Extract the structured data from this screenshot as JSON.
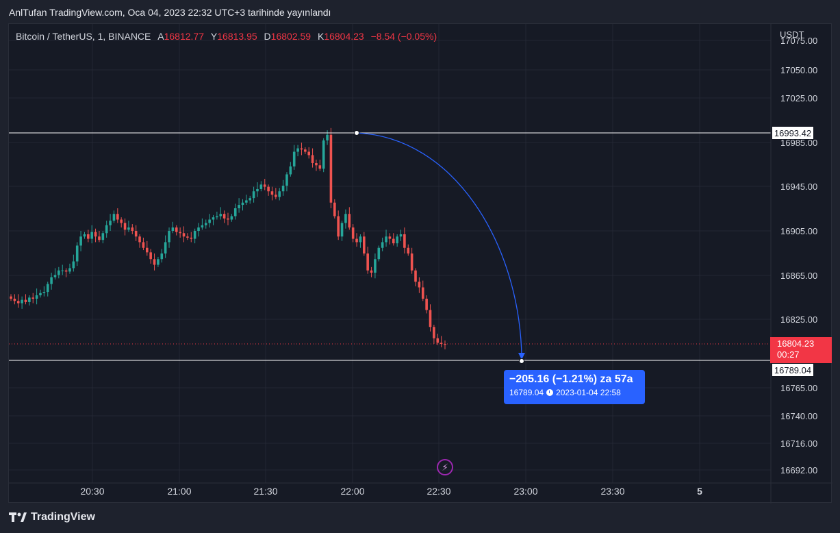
{
  "header": {
    "published_text": "AnlTufan TradingView.com, Oca 04, 2023 22:32 UTC+3 tarihinde yayınlandı"
  },
  "legend": {
    "symbol": "Bitcoin / TetherUS, 1, BINANCE",
    "open_key": "A",
    "open": "16812.77",
    "high_key": "Y",
    "high": "16813.95",
    "low_key": "D",
    "low": "16802.59",
    "close_key": "K",
    "close": "16804.23",
    "change": "−8.54 (−0.05%)"
  },
  "axis": {
    "currency": "USDT",
    "y_ticks": [
      "17075.00",
      "17050.00",
      "17025.00",
      "16985.00",
      "16945.00",
      "16905.00",
      "16865.00",
      "16825.00",
      "16765.00",
      "16740.00",
      "16716.00",
      "16692.00"
    ],
    "x_ticks": [
      "20:30",
      "21:00",
      "21:30",
      "22:00",
      "22:30",
      "23:00",
      "23:30",
      "5"
    ]
  },
  "price_lines": {
    "upper_label": "16993.42",
    "lower_label": "16789.04"
  },
  "current_price": {
    "price": "16804.23",
    "countdown": "00:27"
  },
  "measure": {
    "main": "−205.16 (−1.21%) za 57a",
    "price": "16789.04",
    "datetime": "2023-01-04  22:58"
  },
  "footer": {
    "brand": "TradingView"
  },
  "colors": {
    "up": "#26a69a",
    "down": "#ef5350",
    "measure": "#2962ff",
    "price_tag": "#f23645",
    "background": "#161a25"
  },
  "chart_data": {
    "type": "candlestick",
    "symbol": "Bitcoin / TetherUS",
    "interval": "1",
    "exchange": "BINANCE",
    "x_start": "20:04",
    "x_end": "22:32",
    "close_approx": [
      16845,
      16843,
      16841,
      16844,
      16842,
      16846,
      16845,
      16848,
      16850,
      16851,
      16858,
      16864,
      16866,
      16870,
      16870,
      16869,
      16872,
      16878,
      16892,
      16900,
      16902,
      16898,
      16904,
      16900,
      16897,
      16903,
      16910,
      16914,
      16920,
      16915,
      16912,
      16906,
      16908,
      16905,
      16900,
      16895,
      16890,
      16886,
      16880,
      16875,
      16880,
      16885,
      16895,
      16905,
      16908,
      16904,
      16903,
      16900,
      16899,
      16898,
      16905,
      16908,
      16910,
      16912,
      16915,
      16917,
      16918,
      16920,
      16916,
      16915,
      16918,
      16925,
      16928,
      16930,
      16932,
      16934,
      16940,
      16942,
      16946,
      16944,
      16940,
      16937,
      16935,
      16940,
      16945,
      16955,
      16962,
      16975,
      16978,
      16977,
      16975,
      16972,
      16965,
      16963,
      16960,
      16985,
      16990,
      16930,
      16918,
      16900,
      16912,
      16920,
      16908,
      16898,
      16895,
      16900,
      16885,
      16870,
      16868,
      16880,
      16890,
      16895,
      16900,
      16898,
      16894,
      16900,
      16902,
      16890,
      16885,
      16870,
      16860,
      16855,
      16845,
      16835,
      16820,
      16810,
      16806,
      16805,
      16804.23
    ]
  }
}
